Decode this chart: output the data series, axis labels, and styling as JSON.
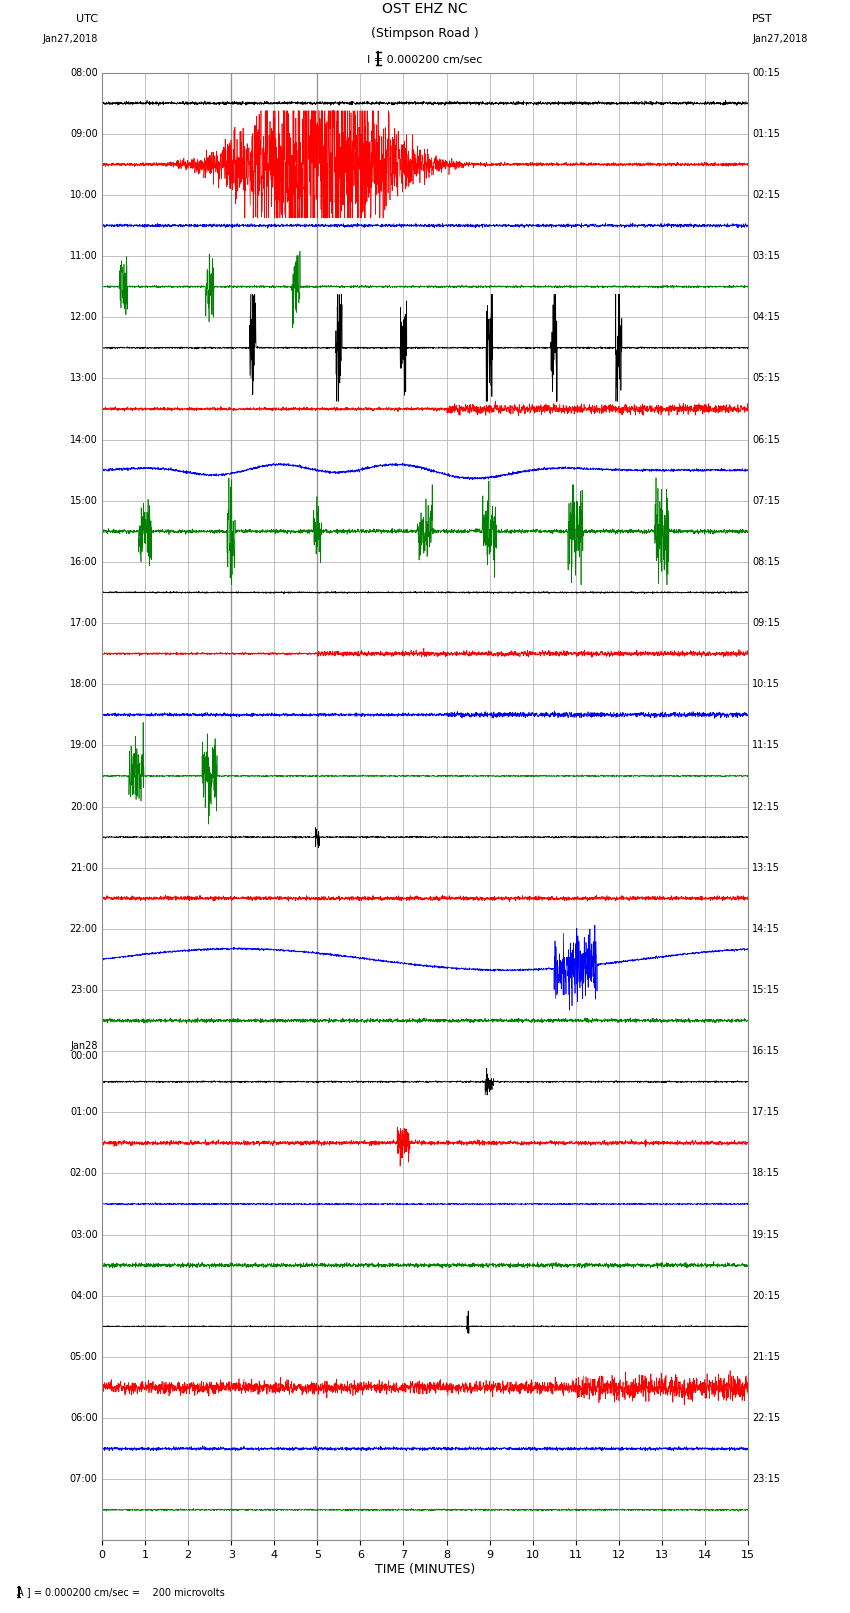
{
  "title_line1": "OST EHZ NC",
  "title_line2": "(Stimpson Road )",
  "title_line3": "I = 0.000200 cm/sec",
  "left_label_top": "UTC",
  "left_label_date": "Jan27,2018",
  "right_label_top": "PST",
  "right_label_date": "Jan27,2018",
  "xlabel": "TIME (MINUTES)",
  "footer": "A ] = 0.000200 cm/sec =    200 microvolts",
  "xmin": 0,
  "xmax": 15,
  "background_color": "#ffffff",
  "grid_color": "#aaaaaa",
  "trace_colors_cycle": [
    "black",
    "red",
    "blue",
    "green"
  ],
  "utc_times": [
    "08:00",
    "09:00",
    "10:00",
    "11:00",
    "12:00",
    "13:00",
    "14:00",
    "15:00",
    "16:00",
    "17:00",
    "18:00",
    "19:00",
    "20:00",
    "21:00",
    "22:00",
    "23:00",
    "Jan28\n00:00",
    "01:00",
    "02:00",
    "03:00",
    "04:00",
    "05:00",
    "06:00",
    "07:00",
    ""
  ],
  "pst_times": [
    "00:15",
    "01:15",
    "02:15",
    "03:15",
    "04:15",
    "05:15",
    "06:15",
    "07:15",
    "08:15",
    "09:15",
    "10:15",
    "11:15",
    "12:15",
    "13:15",
    "14:15",
    "15:15",
    "16:15",
    "17:15",
    "18:15",
    "19:15",
    "20:15",
    "21:15",
    "22:15",
    "23:15",
    ""
  ],
  "num_traces": 24,
  "trace_amplitude_scale": 0.35,
  "noise_base": 0.04,
  "fig_width": 8.5,
  "fig_height": 16.13
}
